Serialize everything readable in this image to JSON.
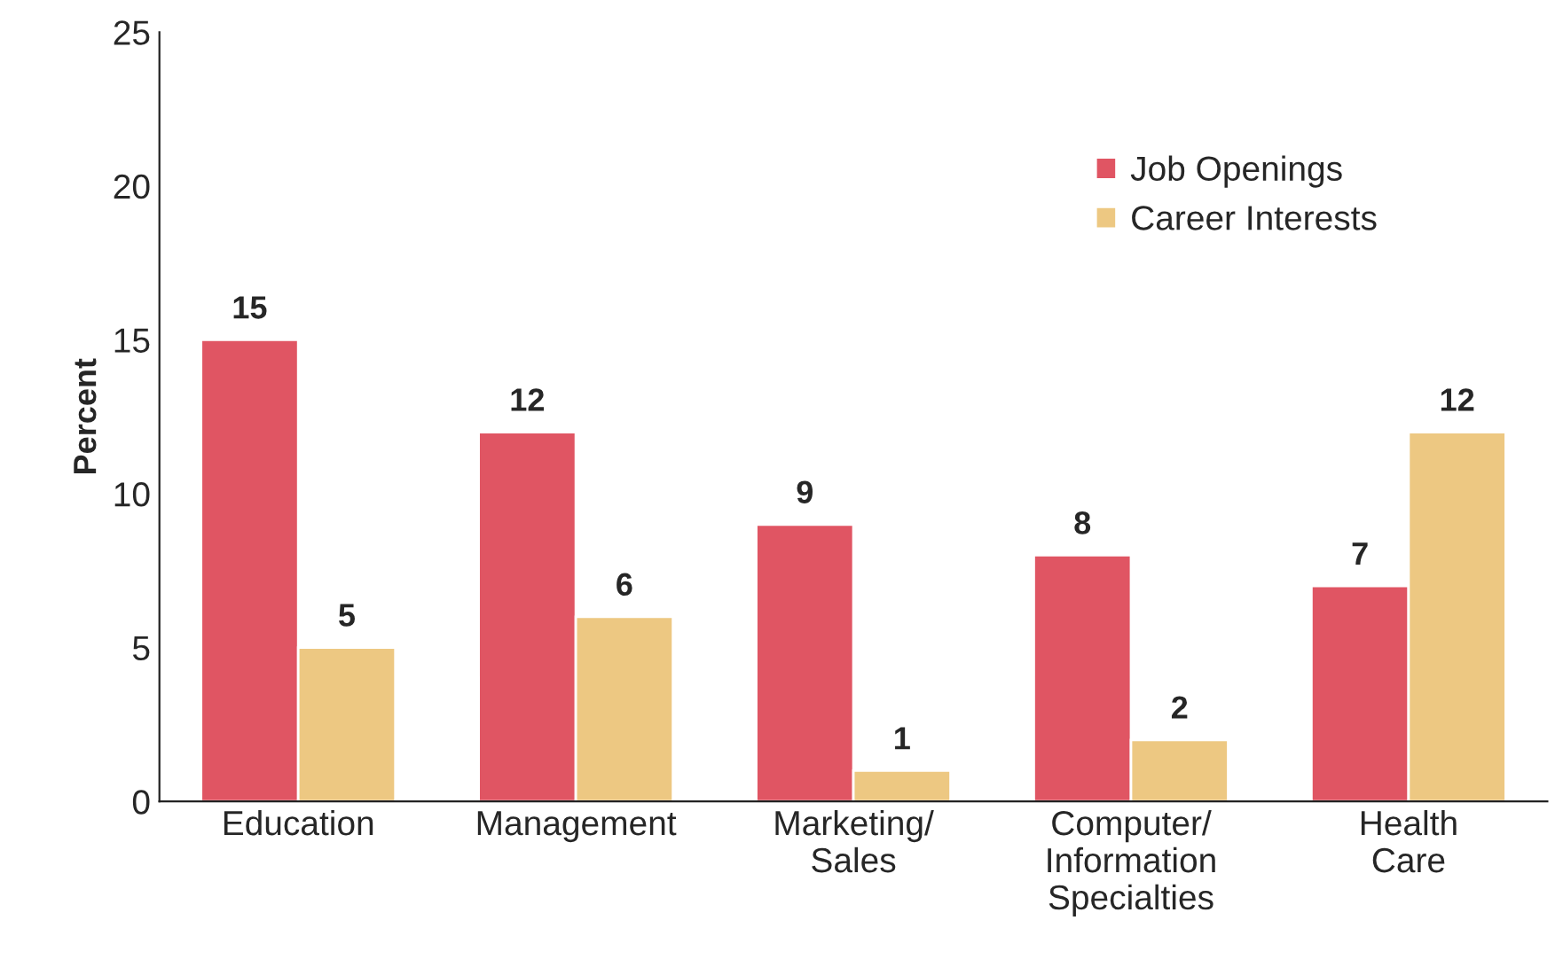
{
  "chart_data": {
    "type": "bar",
    "ylabel": "Percent",
    "categories": [
      "Education",
      "Management",
      "Marketing/\nSales",
      "Computer/\nInformation\nSpecialties",
      "Health\nCare"
    ],
    "series": [
      {
        "name": "Job Openings",
        "color": "#e05563",
        "values": [
          15,
          12,
          9,
          8,
          7
        ]
      },
      {
        "name": "Career Interests",
        "color": "#edc882",
        "values": [
          5,
          6,
          1,
          2,
          12
        ]
      }
    ],
    "ylim": [
      0,
      25
    ],
    "yticks": [
      0,
      5,
      10,
      15,
      20,
      25
    ],
    "grid": false,
    "legend": "top right",
    "data_labels": true
  }
}
